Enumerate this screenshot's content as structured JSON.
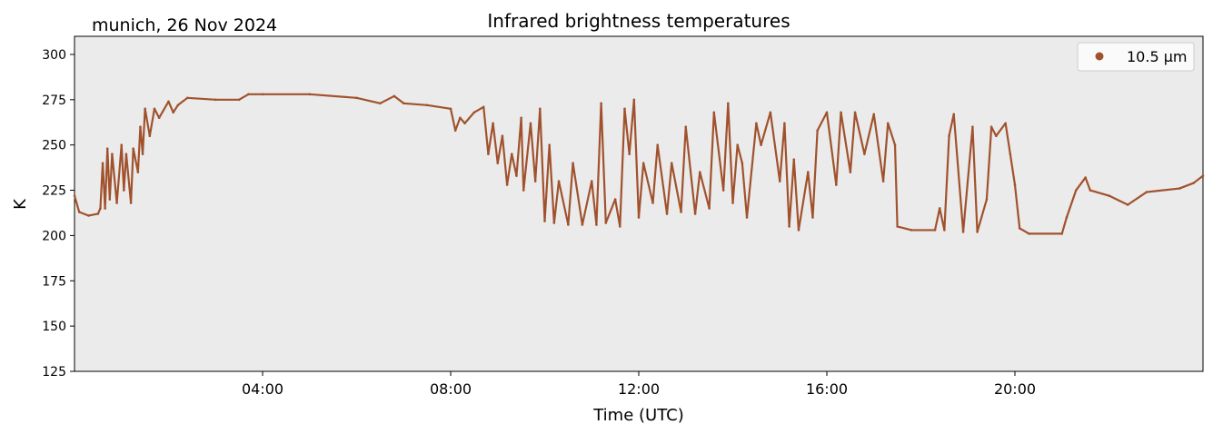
{
  "chart_data": {
    "type": "scatter",
    "title": "Infrared brightness temperatures",
    "subtitle": "munich, 26 Nov 2024",
    "xlabel": "Time (UTC)",
    "ylabel": "K",
    "xlim_hours": [
      0,
      24
    ],
    "ylim": [
      125,
      310
    ],
    "yticks": [
      125,
      150,
      175,
      200,
      225,
      250,
      275,
      300
    ],
    "xticks": [
      {
        "h": 4,
        "label": "04:00"
      },
      {
        "h": 8,
        "label": "08:00"
      },
      {
        "h": 12,
        "label": "12:00"
      },
      {
        "h": 16,
        "label": "16:00"
      },
      {
        "h": 20,
        "label": "20:00"
      }
    ],
    "grid": false,
    "background": "#ebebeb",
    "legend": {
      "position": "top-right",
      "entries": [
        "10.5 µm"
      ]
    },
    "series": [
      {
        "name": "10.5 µm",
        "color": "#a0522d",
        "points": [
          [
            0.0,
            222
          ],
          [
            0.1,
            213
          ],
          [
            0.3,
            211
          ],
          [
            0.5,
            212
          ],
          [
            0.55,
            215
          ],
          [
            0.6,
            240
          ],
          [
            0.65,
            215
          ],
          [
            0.7,
            248
          ],
          [
            0.75,
            220
          ],
          [
            0.8,
            245
          ],
          [
            0.9,
            218
          ],
          [
            1.0,
            250
          ],
          [
            1.05,
            225
          ],
          [
            1.1,
            245
          ],
          [
            1.2,
            218
          ],
          [
            1.25,
            248
          ],
          [
            1.35,
            235
          ],
          [
            1.4,
            260
          ],
          [
            1.45,
            245
          ],
          [
            1.5,
            270
          ],
          [
            1.6,
            255
          ],
          [
            1.7,
            270
          ],
          [
            1.8,
            265
          ],
          [
            2.0,
            274
          ],
          [
            2.1,
            268
          ],
          [
            2.2,
            272
          ],
          [
            2.4,
            276
          ],
          [
            3.0,
            275
          ],
          [
            3.5,
            275
          ],
          [
            3.7,
            278
          ],
          [
            4.0,
            278
          ],
          [
            5.0,
            278
          ],
          [
            6.0,
            276
          ],
          [
            6.5,
            273
          ],
          [
            6.8,
            277
          ],
          [
            7.0,
            273
          ],
          [
            7.5,
            272
          ],
          [
            8.0,
            270
          ],
          [
            8.1,
            258
          ],
          [
            8.2,
            265
          ],
          [
            8.3,
            262
          ],
          [
            8.5,
            268
          ],
          [
            8.7,
            271
          ],
          [
            8.8,
            245
          ],
          [
            8.9,
            262
          ],
          [
            9.0,
            240
          ],
          [
            9.1,
            255
          ],
          [
            9.2,
            228
          ],
          [
            9.3,
            245
          ],
          [
            9.4,
            233
          ],
          [
            9.5,
            265
          ],
          [
            9.55,
            225
          ],
          [
            9.7,
            262
          ],
          [
            9.8,
            230
          ],
          [
            9.9,
            270
          ],
          [
            10.0,
            208
          ],
          [
            10.1,
            250
          ],
          [
            10.2,
            207
          ],
          [
            10.3,
            230
          ],
          [
            10.5,
            206
          ],
          [
            10.6,
            240
          ],
          [
            10.8,
            206
          ],
          [
            11.0,
            230
          ],
          [
            11.1,
            206
          ],
          [
            11.2,
            273
          ],
          [
            11.3,
            207
          ],
          [
            11.5,
            220
          ],
          [
            11.6,
            205
          ],
          [
            11.7,
            270
          ],
          [
            11.8,
            245
          ],
          [
            11.9,
            275
          ],
          [
            12.0,
            210
          ],
          [
            12.1,
            240
          ],
          [
            12.3,
            218
          ],
          [
            12.4,
            250
          ],
          [
            12.6,
            212
          ],
          [
            12.7,
            240
          ],
          [
            12.9,
            213
          ],
          [
            13.0,
            260
          ],
          [
            13.2,
            212
          ],
          [
            13.3,
            235
          ],
          [
            13.5,
            215
          ],
          [
            13.6,
            268
          ],
          [
            13.8,
            225
          ],
          [
            13.9,
            273
          ],
          [
            14.0,
            218
          ],
          [
            14.1,
            250
          ],
          [
            14.2,
            240
          ],
          [
            14.3,
            210
          ],
          [
            14.5,
            262
          ],
          [
            14.6,
            250
          ],
          [
            14.8,
            268
          ],
          [
            15.0,
            230
          ],
          [
            15.1,
            262
          ],
          [
            15.2,
            205
          ],
          [
            15.3,
            242
          ],
          [
            15.4,
            203
          ],
          [
            15.6,
            235
          ],
          [
            15.7,
            210
          ],
          [
            15.8,
            258
          ],
          [
            16.0,
            268
          ],
          [
            16.2,
            228
          ],
          [
            16.3,
            268
          ],
          [
            16.5,
            235
          ],
          [
            16.6,
            268
          ],
          [
            16.8,
            245
          ],
          [
            17.0,
            267
          ],
          [
            17.2,
            230
          ],
          [
            17.3,
            262
          ],
          [
            17.45,
            250
          ],
          [
            17.5,
            205
          ],
          [
            17.8,
            203
          ],
          [
            18.3,
            203
          ],
          [
            18.4,
            215
          ],
          [
            18.5,
            203
          ],
          [
            18.6,
            255
          ],
          [
            18.7,
            267
          ],
          [
            18.9,
            202
          ],
          [
            19.1,
            260
          ],
          [
            19.2,
            202
          ],
          [
            19.4,
            220
          ],
          [
            19.5,
            260
          ],
          [
            19.6,
            255
          ],
          [
            19.8,
            262
          ],
          [
            19.9,
            245
          ],
          [
            20.0,
            228
          ],
          [
            20.1,
            204
          ],
          [
            20.3,
            201
          ],
          [
            21.0,
            201
          ],
          [
            21.1,
            210
          ],
          [
            21.3,
            225
          ],
          [
            21.5,
            232
          ],
          [
            21.6,
            225
          ],
          [
            22.0,
            222
          ],
          [
            22.4,
            217
          ],
          [
            22.8,
            224
          ],
          [
            23.5,
            226
          ],
          [
            23.8,
            229
          ],
          [
            24.0,
            233
          ]
        ]
      }
    ]
  }
}
